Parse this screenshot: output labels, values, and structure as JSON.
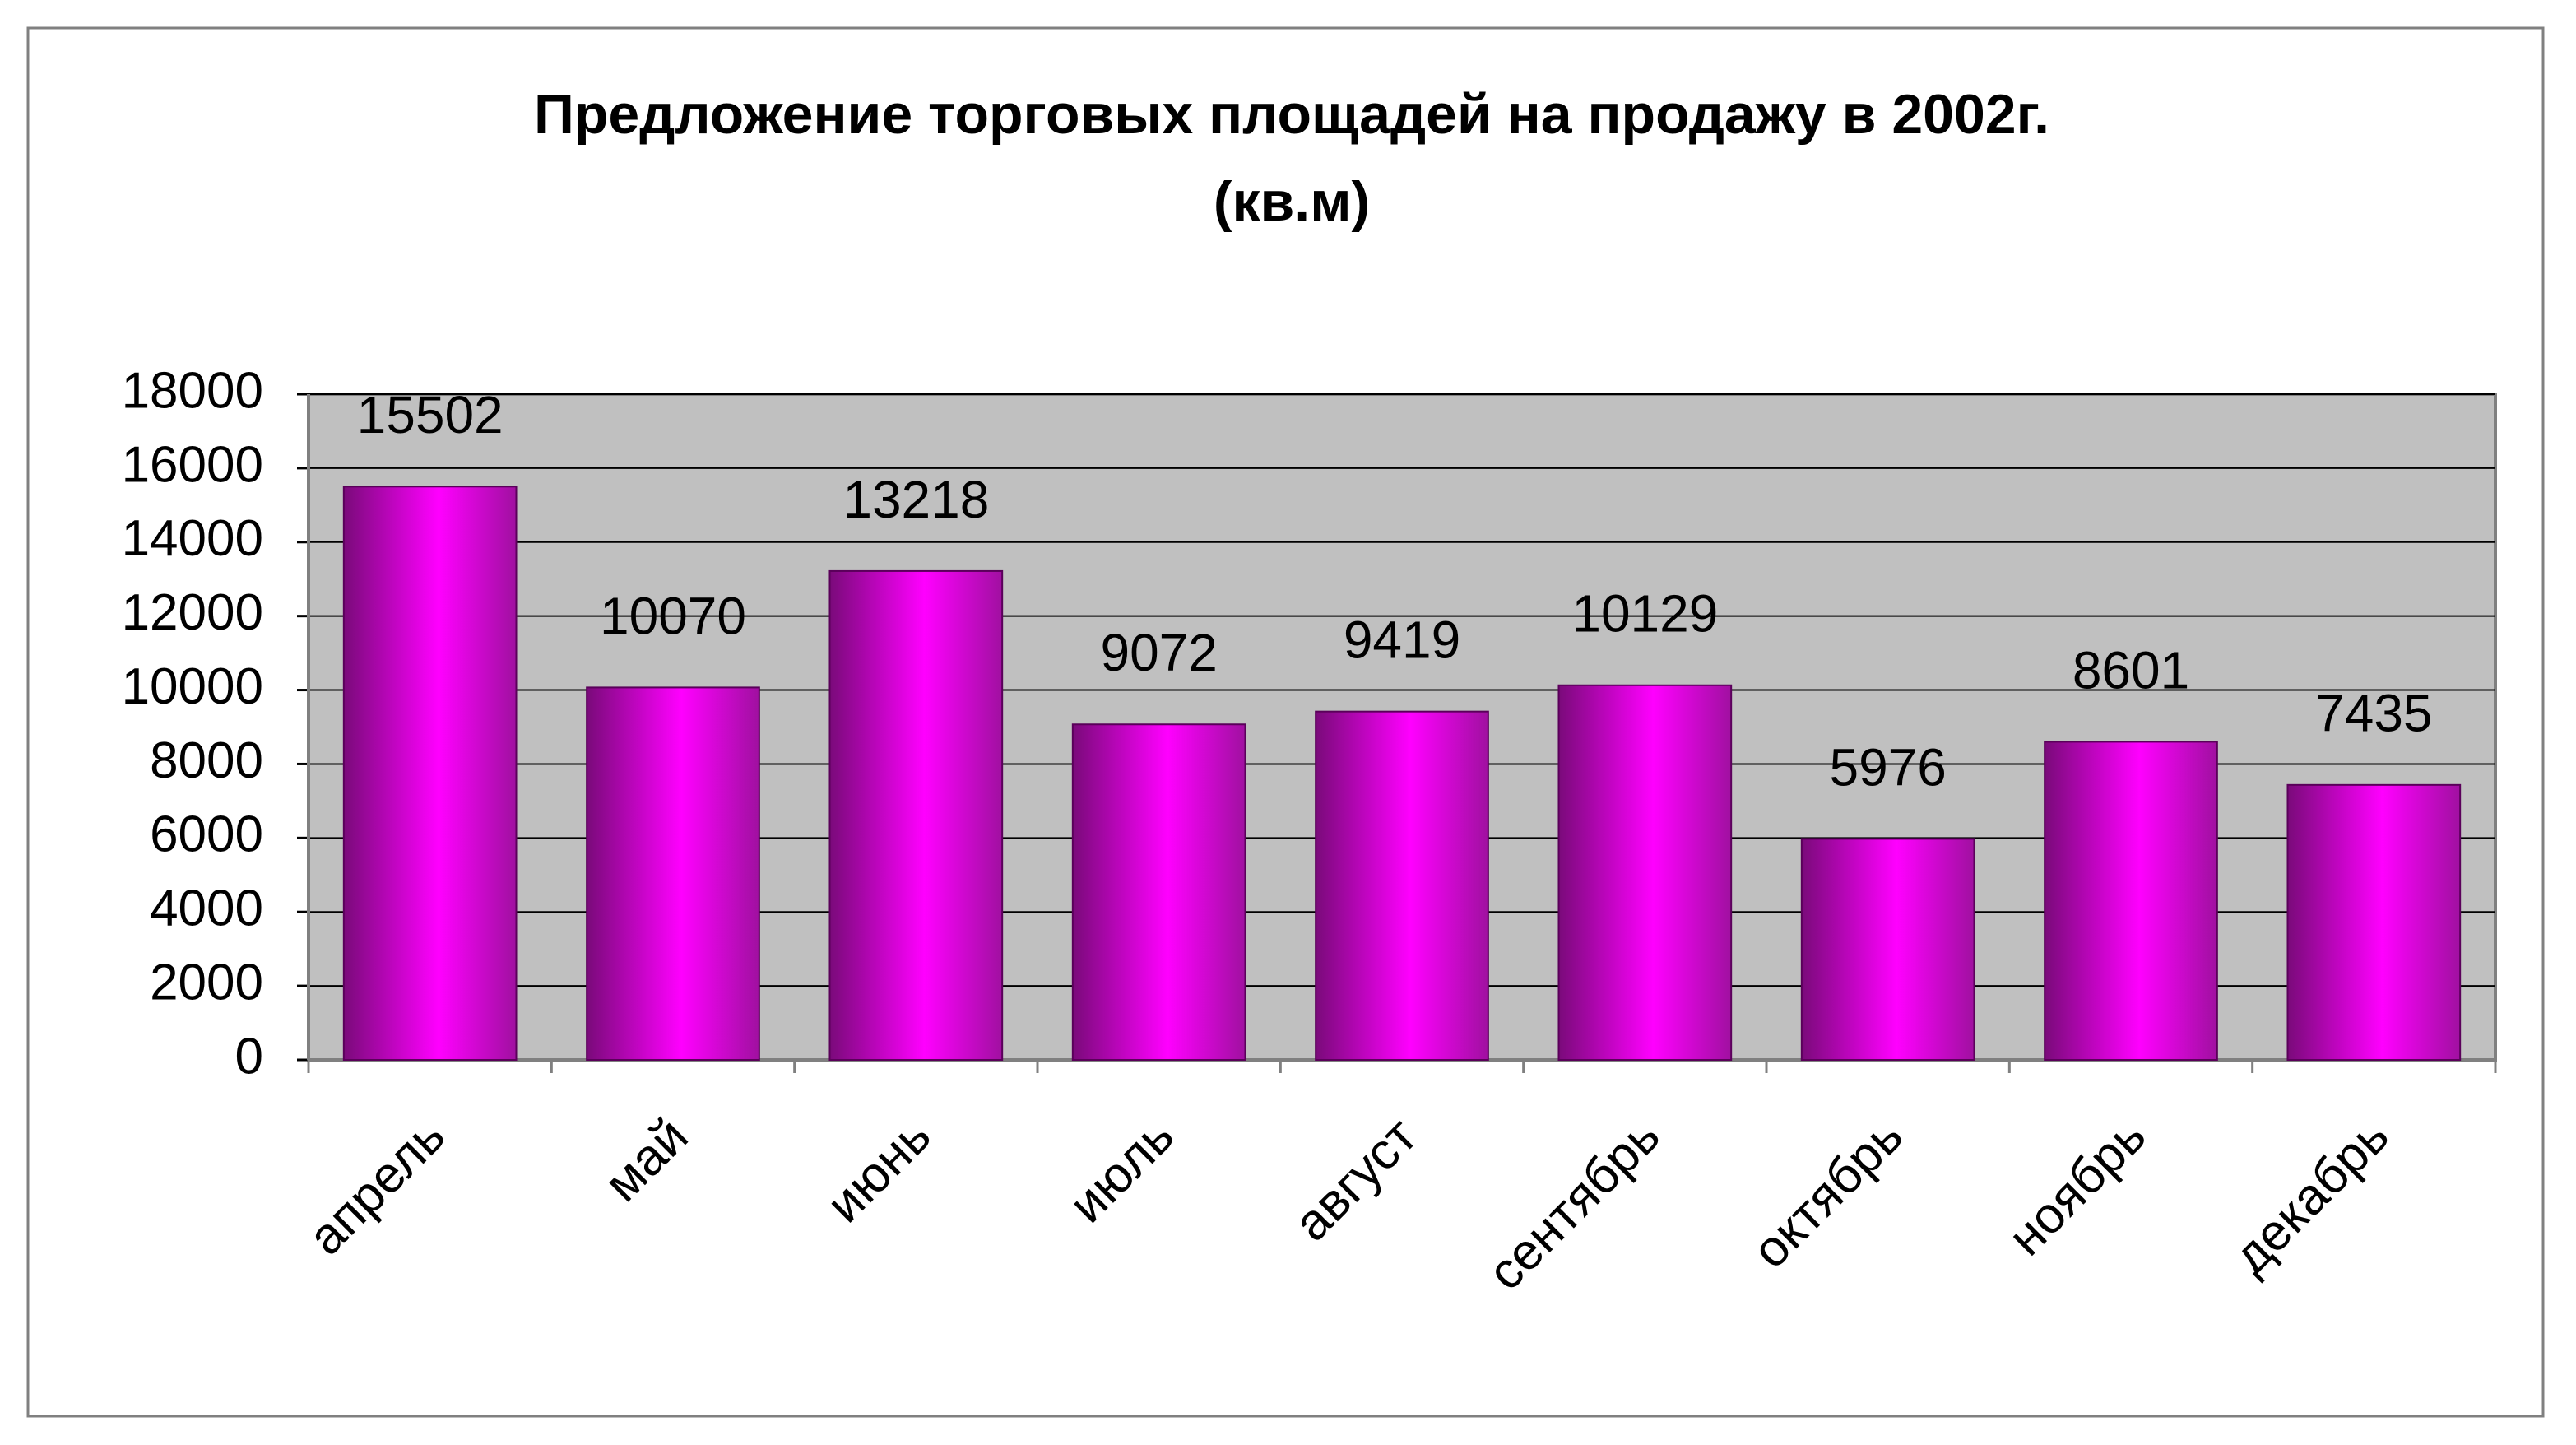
{
  "chart_data": {
    "type": "bar",
    "title": [
      "Предложение торговых площадей на продажу в 2002г.",
      "(кв.м)"
    ],
    "categories": [
      "апрель",
      "май",
      "июнь",
      "июль",
      "август",
      "сентябрь",
      "октябрь",
      "ноябрь",
      "декабрь"
    ],
    "values": [
      15502,
      10070,
      13218,
      9072,
      9419,
      10129,
      5976,
      8601,
      7435
    ],
    "color": "#ff00ff",
    "ylim": [
      0,
      18000
    ],
    "yticks": [
      0,
      2000,
      4000,
      6000,
      8000,
      10000,
      12000,
      14000,
      16000,
      18000
    ],
    "grid": true
  }
}
